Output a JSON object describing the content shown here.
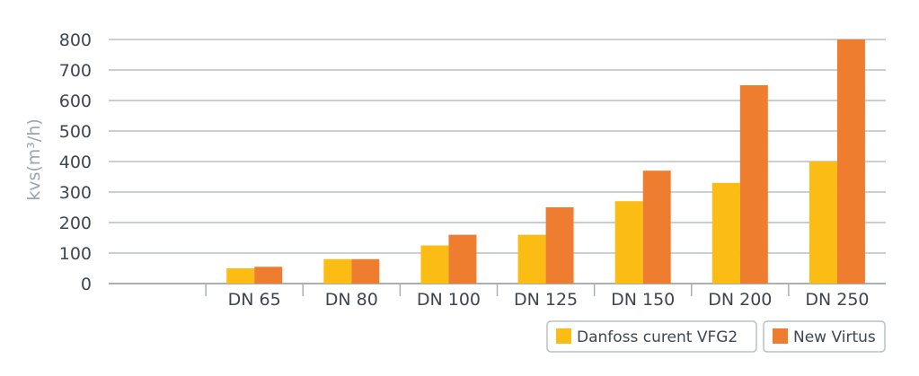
{
  "chart_data": {
    "type": "bar",
    "title": "",
    "xlabel": "",
    "ylabel": "kvs(m³/h)",
    "ylim": [
      0,
      800
    ],
    "yticks": [
      0,
      100,
      200,
      300,
      400,
      500,
      600,
      700,
      800
    ],
    "grid": true,
    "legend_position": "bottom-right",
    "categories": [
      "",
      "DN 65",
      "DN 80",
      "DN 100",
      "DN 125",
      "DN 150",
      "DN 200",
      "DN 250"
    ],
    "series": [
      {
        "name": "Danfoss curent VFG2",
        "color": "#fbbd13",
        "values": [
          null,
          50,
          80,
          125,
          160,
          270,
          330,
          400
        ]
      },
      {
        "name": "New Virtus",
        "color": "#ee7d2f",
        "values": [
          null,
          55,
          80,
          160,
          250,
          370,
          650,
          800
        ]
      }
    ]
  }
}
